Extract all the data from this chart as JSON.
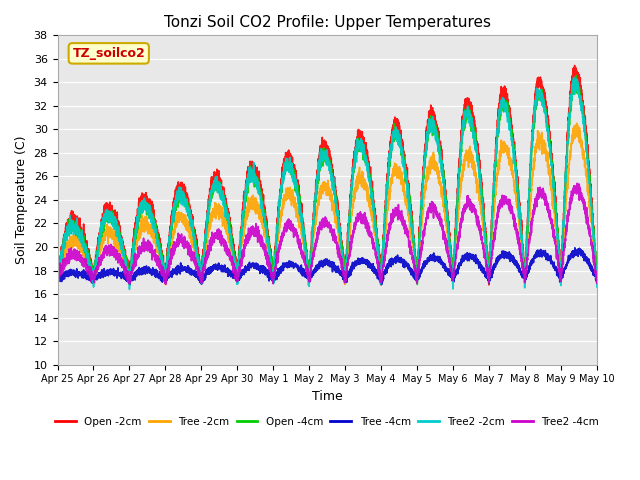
{
  "title": "Tonzi Soil CO2 Profile: Upper Temperatures",
  "xlabel": "Time",
  "ylabel": "Soil Temperature (C)",
  "ylim": [
    10,
    38
  ],
  "yticks": [
    10,
    12,
    14,
    16,
    18,
    20,
    22,
    24,
    26,
    28,
    30,
    32,
    34,
    36,
    38
  ],
  "background_color": "#e8e8e8",
  "series": [
    {
      "label": "Open -2cm",
      "color": "#ff0000",
      "lw": 1.2
    },
    {
      "label": "Tree -2cm",
      "color": "#ffa500",
      "lw": 1.2
    },
    {
      "label": "Open -4cm",
      "color": "#00cc00",
      "lw": 1.2
    },
    {
      "label": "Tree -4cm",
      "color": "#0000cc",
      "lw": 1.2
    },
    {
      "label": "Tree2 -2cm",
      "color": "#00cccc",
      "lw": 1.2
    },
    {
      "label": "Tree2 -4cm",
      "color": "#cc00cc",
      "lw": 1.2
    }
  ],
  "xtick_labels": [
    "Apr 25",
    "Apr 26",
    "Apr 27",
    "Apr 28",
    "Apr 29",
    "Apr 30",
    "May 1",
    "May 2",
    "May 3",
    "May 4",
    "May 5",
    "May 6",
    "May 7",
    "May 8",
    "May 9",
    "May 10"
  ],
  "legend_text": "TZ_soilco2",
  "legend_bg": "#ffffcc",
  "legend_border": "#ccaa00"
}
